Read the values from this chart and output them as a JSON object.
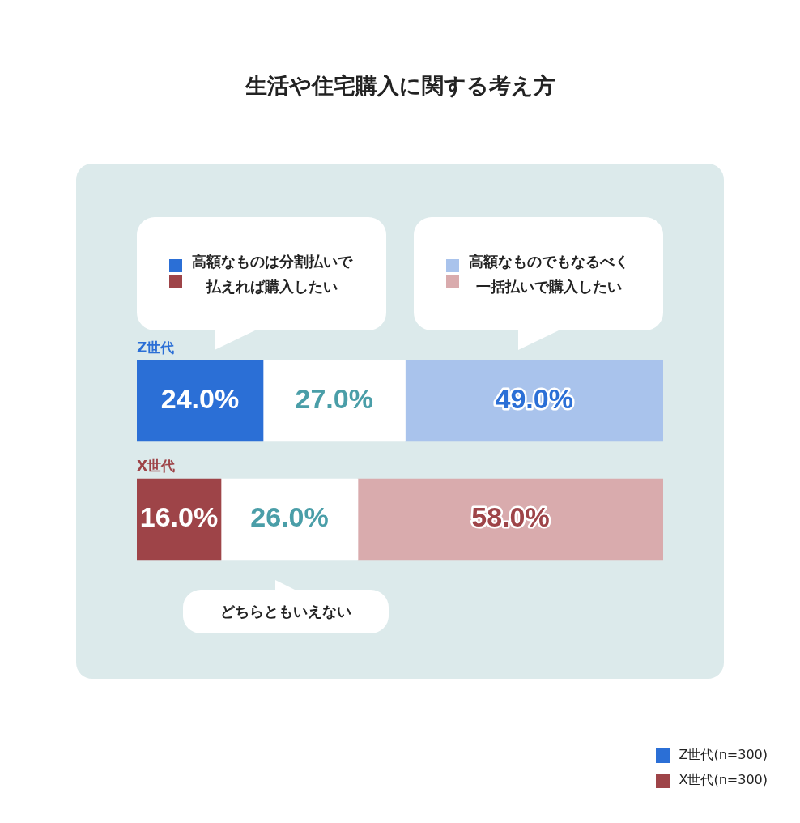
{
  "chart_data": {
    "type": "bar",
    "orientation": "horizontal",
    "stacked": true,
    "title": "生活や住宅購入に関する考え方",
    "categories": [
      "Z世代",
      "X世代"
    ],
    "series": [
      {
        "name": "高額なものは分割払いで払えれば購入したい",
        "colors": [
          "#2b6fd6",
          "#9e4448"
        ],
        "values": [
          24.0,
          16.0
        ],
        "value_labels": [
          "24.0%",
          "16.0%"
        ]
      },
      {
        "name": "どちらともいえない",
        "colors": [
          "#ffffff",
          "#ffffff"
        ],
        "values": [
          27.0,
          26.0
        ],
        "value_labels": [
          "27.0%",
          "26.0%"
        ]
      },
      {
        "name": "高額なものでもなるべく一括払いで購入したい",
        "colors": [
          "#a9c3ec",
          "#d9abad"
        ],
        "values": [
          49.0,
          58.0
        ],
        "value_labels": [
          "49.0%",
          "58.0%"
        ]
      }
    ],
    "xlim": [
      0,
      100
    ],
    "tick_labels": false,
    "legend": "top",
    "annotations": [
      "Z世代(n=300)",
      "X世代(n=300)"
    ]
  }
}
